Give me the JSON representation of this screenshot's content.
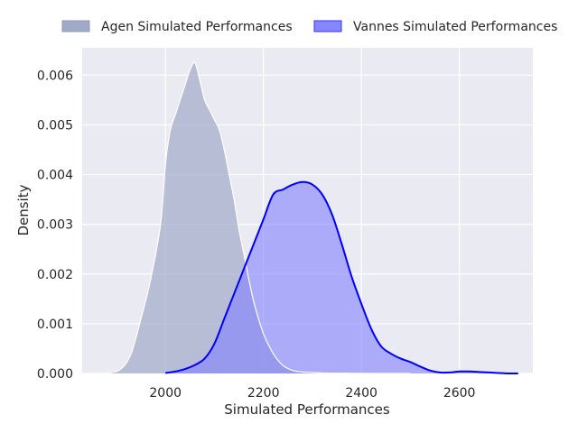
{
  "chart_data": {
    "type": "area",
    "xlabel": "Simulated Performances",
    "ylabel": "Density",
    "xlim": [
      1830,
      2750
    ],
    "ylim": [
      0,
      0.00655
    ],
    "x_ticks": [
      2000,
      2200,
      2400,
      2600
    ],
    "x_tick_labels": [
      "2000",
      "2200",
      "2400",
      "2600"
    ],
    "y_ticks": [
      0,
      0.001,
      0.002,
      0.003,
      0.004,
      0.005,
      0.006
    ],
    "y_tick_labels": [
      "0.000",
      "0.001",
      "0.002",
      "0.003",
      "0.004",
      "0.005",
      "0.006"
    ],
    "grid": true,
    "legend_position": "top",
    "series": [
      {
        "name": "Agen Simulated Performances",
        "fill_color": "#9ba5c3",
        "fill_opacity": 0.65,
        "line_color": "#ffffff",
        "x": [
          1870,
          1890,
          1910,
          1930,
          1950,
          1970,
          1990,
          2000,
          2010,
          2020,
          2030,
          2040,
          2050,
          2060,
          2070,
          2080,
          2090,
          2100,
          2110,
          2120,
          2130,
          2140,
          2150,
          2160,
          2170,
          2180,
          2190,
          2200,
          2210,
          2220,
          2230,
          2240,
          2250,
          2260,
          2270,
          2280,
          2300,
          2320,
          2350,
          2400,
          2450,
          2500
        ],
        "y": [
          0,
          2e-05,
          0.0001,
          0.0004,
          0.0011,
          0.0019,
          0.003,
          0.0042,
          0.0049,
          0.0052,
          0.0055,
          0.0058,
          0.0061,
          0.00625,
          0.0059,
          0.0055,
          0.0053,
          0.0051,
          0.0049,
          0.0045,
          0.004,
          0.0035,
          0.0029,
          0.0024,
          0.0019,
          0.00145,
          0.0011,
          0.0008,
          0.00058,
          0.0004,
          0.00026,
          0.00016,
          0.0001,
          6e-05,
          4e-05,
          3e-05,
          2e-05,
          1e-05,
          5e-06,
          2e-06,
          1e-06,
          0
        ]
      },
      {
        "name": "Vannes Simulated Performances",
        "fill_color": "#8080ff",
        "fill_opacity": 0.6,
        "line_color": "#0000ff",
        "x": [
          2000,
          2020,
          2040,
          2060,
          2080,
          2100,
          2120,
          2140,
          2160,
          2180,
          2200,
          2220,
          2240,
          2260,
          2280,
          2300,
          2320,
          2340,
          2360,
          2380,
          2400,
          2420,
          2440,
          2460,
          2480,
          2500,
          2520,
          2540,
          2560,
          2580,
          2600,
          2620,
          2640,
          2660,
          2680,
          2700,
          2720
        ],
        "y": [
          1e-05,
          4e-05,
          9e-05,
          0.00017,
          0.0003,
          0.0006,
          0.0011,
          0.0016,
          0.0021,
          0.0026,
          0.0031,
          0.0036,
          0.0037,
          0.0038,
          0.00385,
          0.0038,
          0.0036,
          0.0032,
          0.0026,
          0.00195,
          0.0014,
          0.0009,
          0.00055,
          0.0004,
          0.0003,
          0.00023,
          0.00014,
          6e-05,
          2e-05,
          2e-05,
          4e-05,
          4e-05,
          3e-05,
          2e-05,
          1e-05,
          0,
          0
        ]
      }
    ]
  }
}
